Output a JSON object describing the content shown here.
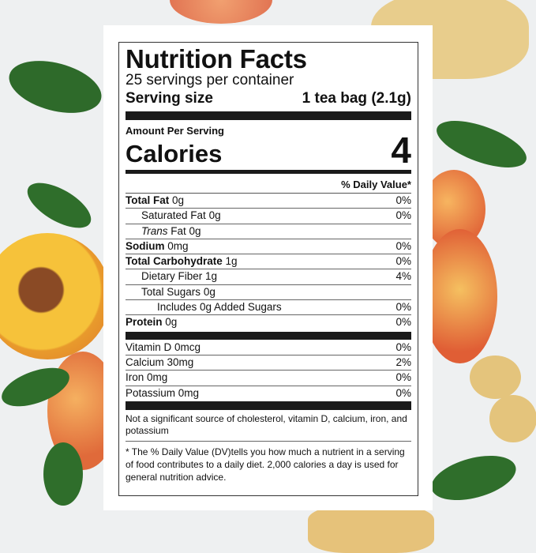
{
  "label": {
    "title": "Nutrition Facts",
    "servings": "25 servings per container",
    "serving_size_label": "Serving size",
    "serving_size_value": "1 tea bag (2.1g)",
    "amount_per_serving": "Amount Per Serving",
    "calories_label": "Calories",
    "calories_value": "4",
    "dv_header": "% Daily Value*",
    "nutrients": [
      {
        "name": "Total Fat",
        "amount": "0g",
        "dv": "0%"
      },
      {
        "name": "Saturated Fat",
        "amount": "0g",
        "dv": "0%"
      },
      {
        "name": "Trans",
        "suffix": "Fat 0g",
        "dv": ""
      },
      {
        "name": "Sodium",
        "amount": "0mg",
        "dv": "0%"
      },
      {
        "name": "Total Carbohydrate",
        "amount": "1g",
        "dv": "0%"
      },
      {
        "name": "Dietary Fiber",
        "amount": "1g",
        "dv": "4%"
      },
      {
        "name": "Total Sugars",
        "amount": "0g",
        "dv": ""
      },
      {
        "name": "Includes 0g Added Sugars",
        "amount": "",
        "dv": "0%"
      },
      {
        "name": "Protein",
        "amount": "0g",
        "dv": "0%"
      }
    ],
    "vitamins": [
      {
        "name": "Vitamin D 0mcg",
        "dv": "0%"
      },
      {
        "name": "Calcium 30mg",
        "dv": "2%"
      },
      {
        "name": "Iron 0mg",
        "dv": "0%"
      },
      {
        "name": "Potassium 0mg",
        "dv": "0%"
      }
    ],
    "note": "Not a significant source of cholesterol, vitamin D, calcium, iron, and potassium",
    "footnote": "* The % Daily Value (DV)tells you how much a nutrient in a serving of food contributes to a daily diet. 2,000 calories a day is used for general nutrition advice."
  }
}
